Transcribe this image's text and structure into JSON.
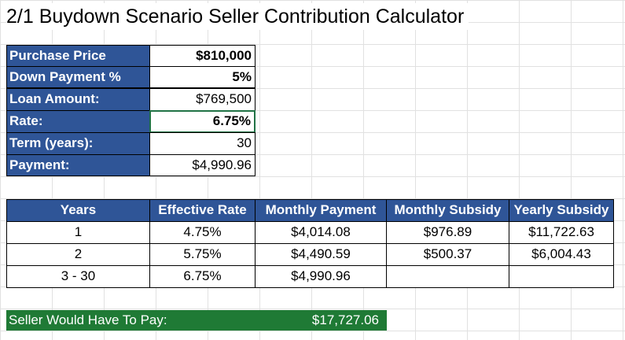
{
  "title": "2/1 Buydown Scenario Seller Contribution Calculator",
  "inputs": [
    {
      "label": "Purchase Price",
      "value": "$810,000"
    },
    {
      "label": "Down Payment %",
      "value": "5%"
    },
    {
      "label": "Loan Amount:",
      "value": "$769,500"
    },
    {
      "label": "Rate:",
      "value": "6.75%"
    },
    {
      "label": "Term (years):",
      "value": "30"
    },
    {
      "label": "Payment:",
      "value": "$4,990.96"
    }
  ],
  "table": {
    "headers": [
      "Years",
      "Effective Rate",
      "Monthly Payment",
      "Monthly Subsidy",
      "Yearly Subsidy"
    ],
    "rows": [
      [
        "1",
        "4.75%",
        "$4,014.08",
        "$976.89",
        "$11,722.63"
      ],
      [
        "2",
        "5.75%",
        "$4,490.59",
        "$500.37",
        "$6,004.43"
      ],
      [
        "3 - 30",
        "6.75%",
        "$4,990.96",
        "",
        ""
      ]
    ]
  },
  "summary": {
    "label": "Seller Would Have To Pay:",
    "value": "$17,727.06"
  },
  "colors": {
    "header_blue": "#2f5597",
    "summary_green": "#1f7a35",
    "selection_green": "#217346"
  }
}
